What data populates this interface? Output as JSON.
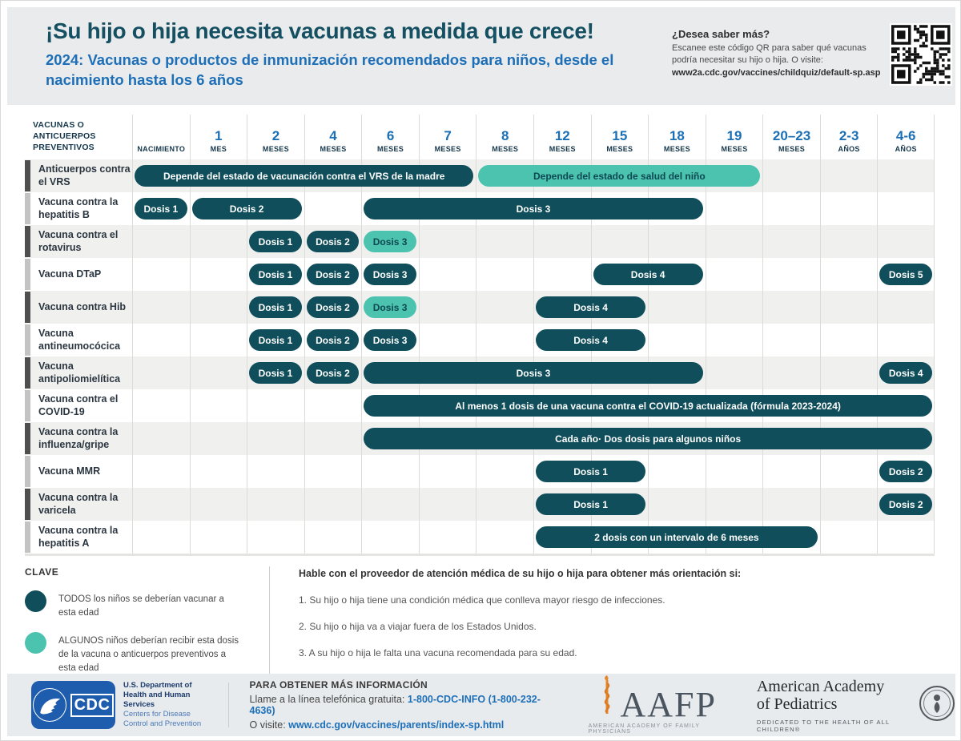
{
  "header": {
    "title": "¡Su hijo o hija necesita vacunas a medida que crece!",
    "subtitle": "2024: Vacunas o productos de inmunización recomendados para niños, desde el nacimiento hasta los 6 años",
    "qr": {
      "heading": "¿Desea saber más?",
      "body": "Escanee este código QR para saber qué vacunas podría necesitar su hijo o hija. O visite:",
      "url": "www2a.cdc.gov/vaccines/childquiz/default-sp.asp"
    }
  },
  "chart_data": {
    "type": "table",
    "corner_header": "VACUNAS O ANTICUERPOS PREVENTIVOS",
    "age_columns": [
      {
        "num": "",
        "unit": "NACIMIENTO"
      },
      {
        "num": "1",
        "unit": "MES"
      },
      {
        "num": "2",
        "unit": "MESES"
      },
      {
        "num": "4",
        "unit": "MESES"
      },
      {
        "num": "6",
        "unit": "MESES"
      },
      {
        "num": "7",
        "unit": "MESES"
      },
      {
        "num": "8",
        "unit": "MESES"
      },
      {
        "num": "12",
        "unit": "MESES"
      },
      {
        "num": "15",
        "unit": "MESES"
      },
      {
        "num": "18",
        "unit": "MESES"
      },
      {
        "num": "19",
        "unit": "MESES"
      },
      {
        "num": "20–23",
        "unit": "MESES"
      },
      {
        "num": "2-3",
        "unit": "AÑOS"
      },
      {
        "num": "4-6",
        "unit": "AÑOS"
      }
    ],
    "bar_styles": {
      "all": "TODOS los niños",
      "some": "ALGUNOS niños"
    },
    "rows": [
      {
        "label": "Anticuerpos contra el VRS",
        "bars": [
          {
            "text": "Depende del estado de vacunación contra el VRS de la madre",
            "start": 0,
            "span": 6,
            "style": "all"
          },
          {
            "text": "Depende del estado de salud del niño",
            "start": 6,
            "span": 5,
            "style": "some"
          }
        ]
      },
      {
        "label": "Vacuna contra la hepatitis B",
        "bars": [
          {
            "text": "Dosis 1",
            "start": 0,
            "span": 1,
            "style": "all"
          },
          {
            "text": "Dosis 2",
            "start": 1,
            "span": 2,
            "style": "all"
          },
          {
            "text": "Dosis 3",
            "start": 4,
            "span": 6,
            "style": "all"
          }
        ]
      },
      {
        "label": "Vacuna contra el rotavirus",
        "bars": [
          {
            "text": "Dosis 1",
            "start": 2,
            "span": 1,
            "style": "all"
          },
          {
            "text": "Dosis 2",
            "start": 3,
            "span": 1,
            "style": "all"
          },
          {
            "text": "Dosis 3",
            "start": 4,
            "span": 1,
            "style": "some"
          }
        ]
      },
      {
        "label": "Vacuna DTaP",
        "bars": [
          {
            "text": "Dosis 1",
            "start": 2,
            "span": 1,
            "style": "all"
          },
          {
            "text": "Dosis 2",
            "start": 3,
            "span": 1,
            "style": "all"
          },
          {
            "text": "Dosis 3",
            "start": 4,
            "span": 1,
            "style": "all"
          },
          {
            "text": "Dosis 4",
            "start": 8,
            "span": 2,
            "style": "all"
          },
          {
            "text": "Dosis 5",
            "start": 13,
            "span": 1,
            "style": "all"
          }
        ]
      },
      {
        "label": "Vacuna contra Hib",
        "bars": [
          {
            "text": "Dosis 1",
            "start": 2,
            "span": 1,
            "style": "all"
          },
          {
            "text": "Dosis 2",
            "start": 3,
            "span": 1,
            "style": "all"
          },
          {
            "text": "Dosis 3",
            "start": 4,
            "span": 1,
            "style": "some"
          },
          {
            "text": "Dosis 4",
            "start": 7,
            "span": 2,
            "style": "all"
          }
        ]
      },
      {
        "label": "Vacuna antineumocócica",
        "bars": [
          {
            "text": "Dosis 1",
            "start": 2,
            "span": 1,
            "style": "all"
          },
          {
            "text": "Dosis 2",
            "start": 3,
            "span": 1,
            "style": "all"
          },
          {
            "text": "Dosis 3",
            "start": 4,
            "span": 1,
            "style": "all"
          },
          {
            "text": "Dosis 4",
            "start": 7,
            "span": 2,
            "style": "all"
          }
        ]
      },
      {
        "label": "Vacuna antipoliomielítica",
        "bars": [
          {
            "text": "Dosis 1",
            "start": 2,
            "span": 1,
            "style": "all"
          },
          {
            "text": "Dosis 2",
            "start": 3,
            "span": 1,
            "style": "all"
          },
          {
            "text": "Dosis 3",
            "start": 4,
            "span": 6,
            "style": "all"
          },
          {
            "text": "Dosis 4",
            "start": 13,
            "span": 1,
            "style": "all"
          }
        ]
      },
      {
        "label": "Vacuna contra el COVID-19",
        "bars": [
          {
            "text": "Al menos 1 dosis de una vacuna contra el COVID-19 actualizada (fórmula 2023-2024)",
            "start": 4,
            "span": 10,
            "style": "all"
          }
        ]
      },
      {
        "label": "Vacuna contra la influenza/gripe",
        "bars": [
          {
            "text": "Cada año· Dos dosis para algunos niños",
            "start": 4,
            "span": 10,
            "style": "all"
          }
        ]
      },
      {
        "label": "Vacuna MMR",
        "bars": [
          {
            "text": "Dosis 1",
            "start": 7,
            "span": 2,
            "style": "all"
          },
          {
            "text": "Dosis 2",
            "start": 13,
            "span": 1,
            "style": "all"
          }
        ]
      },
      {
        "label": "Vacuna contra la varicela",
        "bars": [
          {
            "text": "Dosis 1",
            "start": 7,
            "span": 2,
            "style": "all"
          },
          {
            "text": "Dosis 2",
            "start": 13,
            "span": 1,
            "style": "all"
          }
        ]
      },
      {
        "label": "Vacuna contra la hepatitis A",
        "bars": [
          {
            "text": "2 dosis con un intervalo de 6 meses",
            "start": 7,
            "span": 5,
            "style": "all"
          }
        ]
      }
    ]
  },
  "legend": {
    "title": "CLAVE",
    "items": [
      {
        "style": "all",
        "text": "TODOS los niños se deberían vacunar a esta edad"
      },
      {
        "style": "some",
        "text": "ALGUNOS niños deberían recibir esta dosis de la vacuna o anticuerpos preventivos a esta edad"
      }
    ]
  },
  "guidance": {
    "heading": "Hable con el proveedor de atención médica de su hijo o hija para obtener más orientación si:",
    "items": [
      "1. Su hijo o hija tiene una condición médica que conlleva mayor riesgo de infecciones.",
      "2. Su hijo o hija va a viajar fuera de los Estados Unidos.",
      "3. A su hijo o hija le falta una vacuna recomendada para su edad."
    ]
  },
  "footer": {
    "cdc": {
      "wordmark": "CDC",
      "dept_bold_1": "U.S. Department of",
      "dept_bold_2": "Health and Human Services",
      "dept_reg_1": "Centers for Disease",
      "dept_reg_2": "Control and Prevention"
    },
    "info": {
      "heading": "PARA OBTENER MÁS INFORMACIÓN",
      "call_prefix": "Llame a la línea telefónica gratuita: ",
      "phone": "1-800-CDC-INFO (1-800-232-4636)",
      "visit_prefix": "O visite: ",
      "url": "www.cdc.gov/vaccines/parents/index-sp.html"
    },
    "aafp": {
      "wordmark": "AAFP",
      "tagline": "AMERICAN ACADEMY OF FAMILY PHYSICIANS"
    },
    "aap": {
      "name_line1": "American Academy",
      "name_line2": "of Pediatrics",
      "tagline": "DEDICATED TO THE HEALTH OF ALL CHILDREN®"
    }
  },
  "colors": {
    "dose_all": "#0f4e5a",
    "dose_some": "#4cc3ae",
    "title_teal": "#155062",
    "accent_blue": "#1d6fb8",
    "cdc_blue": "#1e5cae",
    "band_gray": "#e9ebec",
    "row_stripe": "#f0f0ee"
  }
}
